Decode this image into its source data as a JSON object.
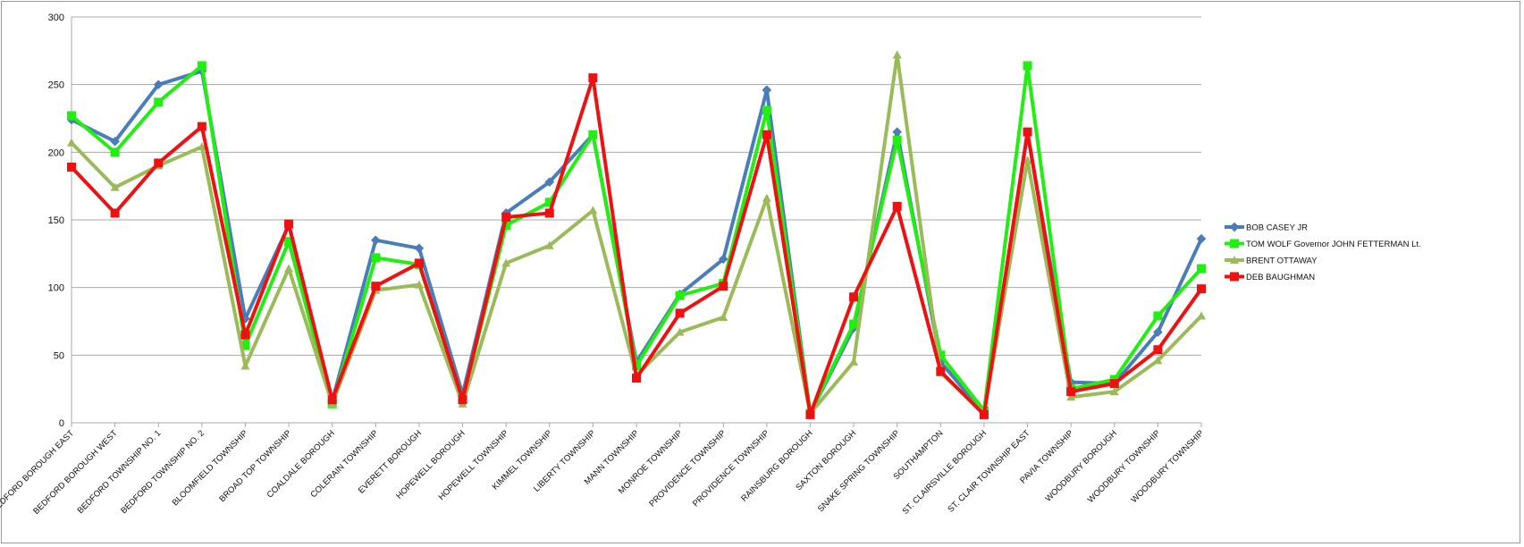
{
  "chart_data": {
    "type": "line",
    "title": "",
    "xlabel": "",
    "ylabel": "",
    "ylim": [
      0,
      300
    ],
    "yticks": [
      0,
      50,
      100,
      150,
      200,
      250,
      300
    ],
    "grid": true,
    "legend_position": "right",
    "categories": [
      "BEDFORD BOROUGH EAST",
      "BEDFORD BOROUGH WEST",
      "BEDFORD TOWNSHIP NO. 1",
      "BEDFORD TOWNSHIP NO. 2",
      "BLOOMFIELD TOWNSHIP",
      "BROAD TOP TOWNSHIP",
      "COALDALE BOROUGH",
      "COLERAIN TOWNSHIP",
      "EVERETT BOROUGH",
      "HOPEWELL BOROUGH",
      "HOPEWELL TOWNSHIP",
      "KIMMEL TOWNSHIP",
      "LIBERTY TOWNSHIP",
      "MANN TOWNSHIP",
      "MONROE TOWNSHIP",
      "PROVIDENCE TOWNSHIP",
      "PROVIDENCE TOWNSHIP",
      "RAINSBURG BOROUGH",
      "SAXTON BOROUGH",
      "SNAKE SPRING TOWNSHIP",
      "SOUTHAMPTON",
      "ST. CLAIRSVILLE BOROUGH",
      "ST. CLAIR TOWNSHIP EAST",
      "PAVIA TOWNSHIP",
      "WOODBURY BOROUGH",
      "WOODBURY TOWNSHIP",
      "WOODBURY TOWNSHIP"
    ],
    "series": [
      {
        "name": "BOB CASEY JR",
        "color": "#4a7ebb",
        "marker": "diamond",
        "values": [
          224,
          208,
          250,
          260,
          77,
          146,
          16,
          135,
          129,
          21,
          155,
          178,
          213,
          45,
          95,
          121,
          246,
          7,
          70,
          215,
          45,
          7,
          214,
          30,
          29,
          67,
          136
        ]
      },
      {
        "name": "TOM WOLF Governor JOHN FETTERMAN Lt.",
        "color": "#22ee11",
        "marker": "square",
        "values": [
          227,
          200,
          237,
          264,
          57,
          134,
          14,
          122,
          117,
          17,
          146,
          163,
          213,
          42,
          94,
          103,
          231,
          7,
          73,
          209,
          50,
          9,
          264,
          25,
          32,
          79,
          114
        ]
      },
      {
        "name": "BRENT OTTAWAY",
        "color": "#9bbb59",
        "marker": "triangle",
        "values": [
          207,
          174,
          190,
          204,
          42,
          114,
          14,
          98,
          102,
          14,
          118,
          131,
          157,
          35,
          67,
          78,
          166,
          7,
          45,
          272,
          37,
          7,
          194,
          19,
          23,
          46,
          79
        ]
      },
      {
        "name": "DEB BAUGHMAN",
        "color": "#ee1111",
        "marker": "square",
        "values": [
          189,
          155,
          192,
          219,
          65,
          147,
          17,
          101,
          118,
          17,
          152,
          155,
          255,
          33,
          81,
          101,
          213,
          6,
          93,
          160,
          38,
          6,
          215,
          23,
          29,
          54,
          99
        ]
      }
    ]
  }
}
